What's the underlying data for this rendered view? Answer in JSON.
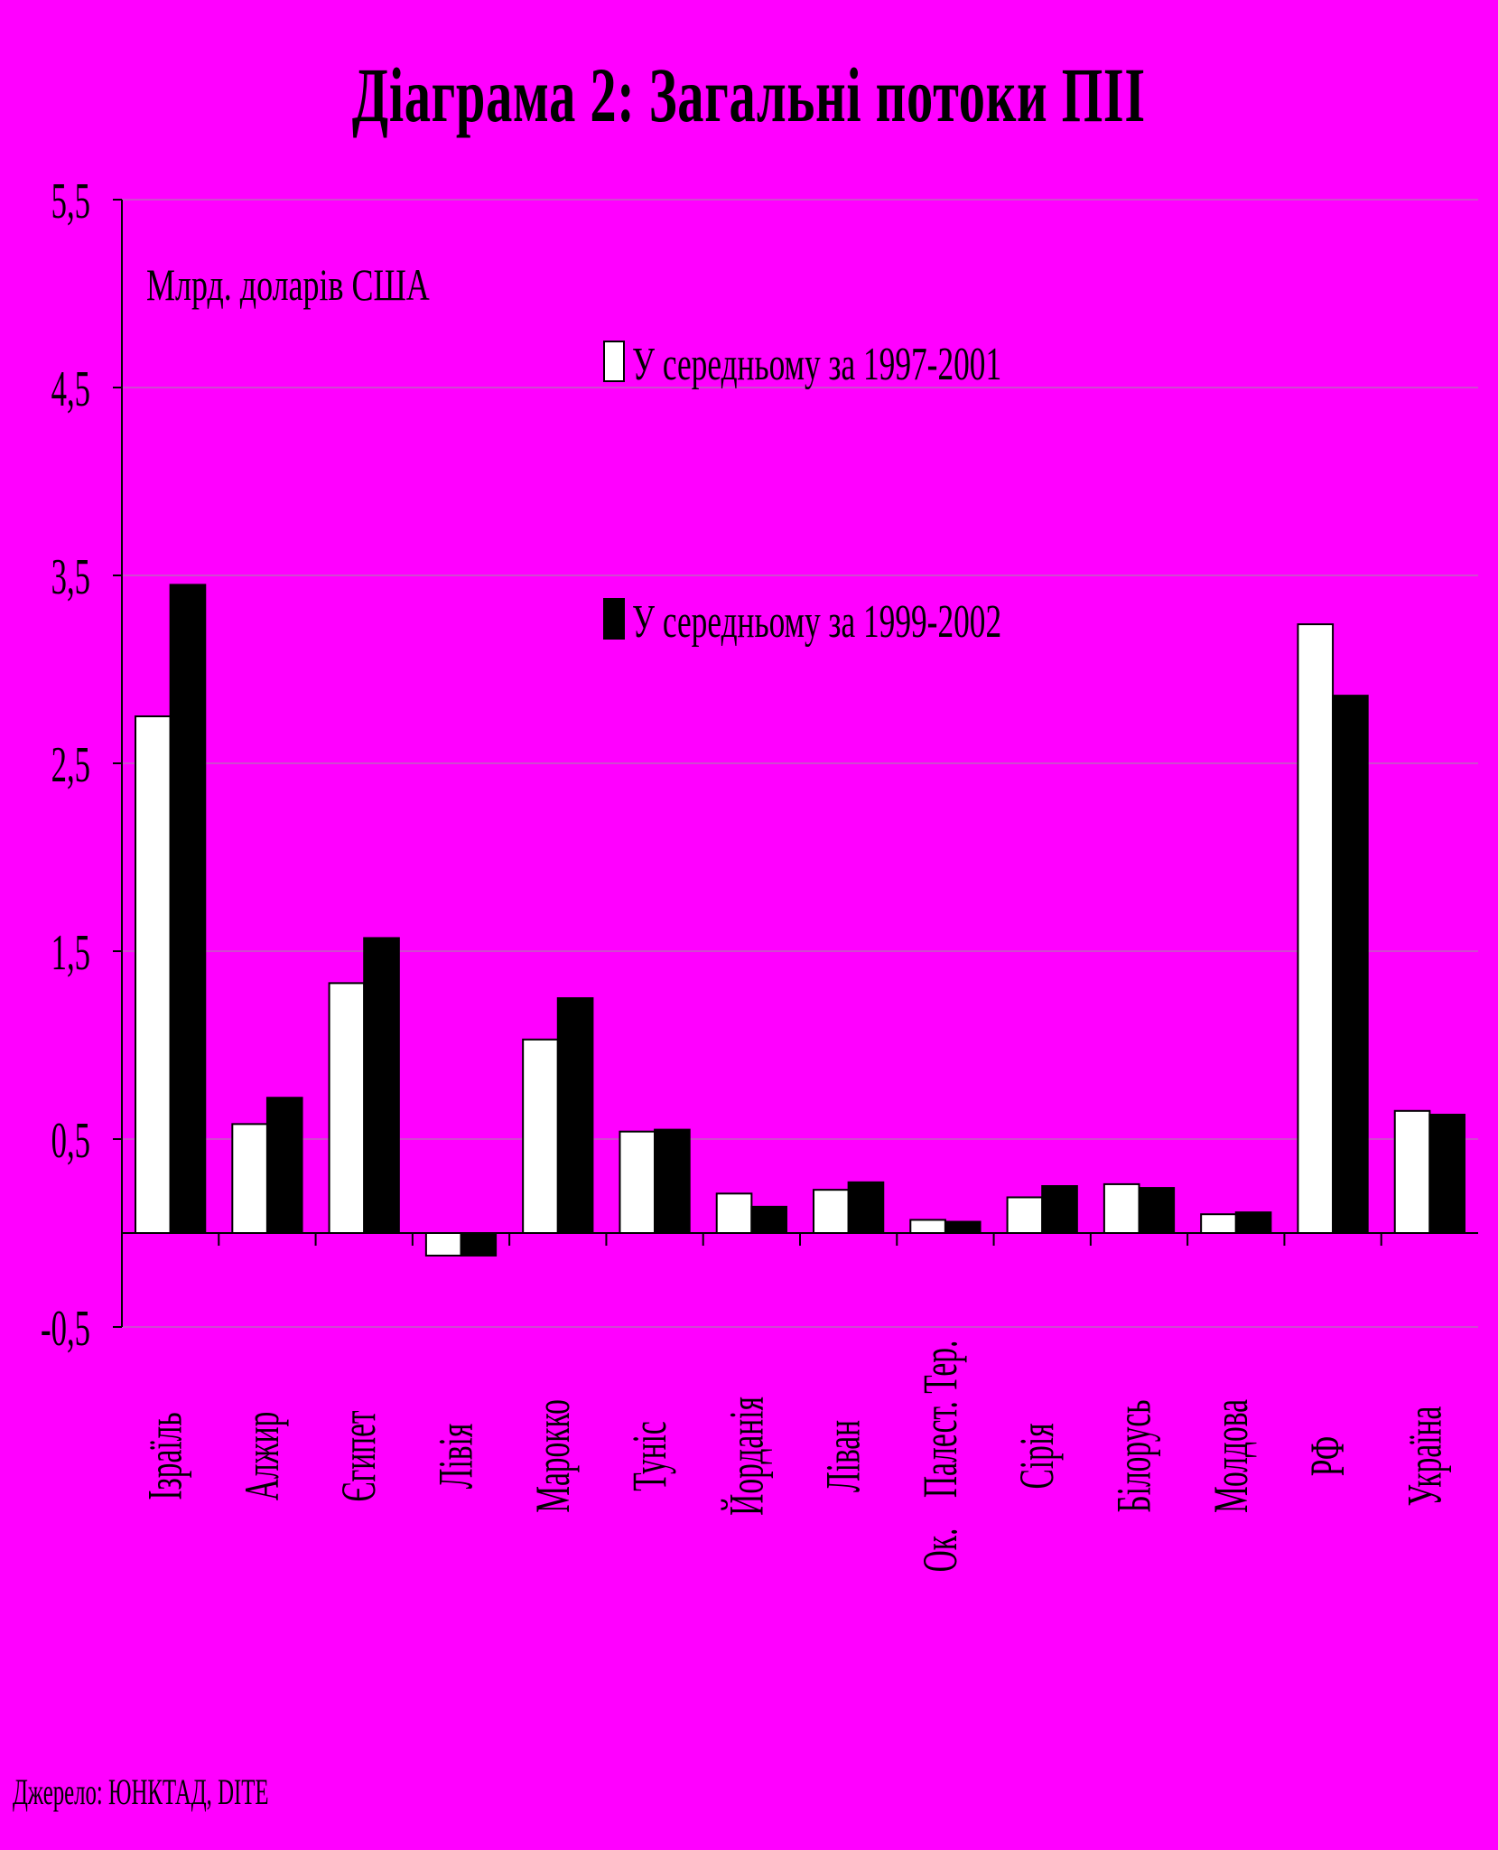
{
  "chart_data": {
    "type": "bar",
    "title": "Діаграма 2: Загальні потоки ПІІ",
    "unit_label": "Млрд. доларів США",
    "source": "Джерело: ЮНКТАД, DITE",
    "ylim": [
      -0.5,
      5.5
    ],
    "y_ticks": [
      "5,5",
      "4,5",
      "3,5",
      "2,5",
      "1,5",
      "0,5",
      "-0,5"
    ],
    "y_tick_values": [
      5.5,
      4.5,
      3.5,
      2.5,
      1.5,
      0.5,
      -0.5
    ],
    "grid": true,
    "legend_position": "top-center",
    "categories": [
      "Ізраїль",
      "Алжир",
      "Єгипет",
      "Лівія",
      "Марокко",
      "Туніс",
      "Йорданія",
      "Ліван",
      "Ок.    Палест. Тер.",
      "Сірія",
      "Білорусь",
      "Молдова",
      "РФ",
      "Україна"
    ],
    "series": [
      {
        "name": "У середньому за 1997-2001",
        "color": "#ffffff",
        "values": [
          2.75,
          0.58,
          1.33,
          -0.12,
          1.03,
          0.54,
          0.21,
          0.23,
          0.07,
          0.19,
          0.26,
          0.1,
          3.24,
          0.65
        ]
      },
      {
        "name": "У середньому за 1999-2002",
        "color": "#000000",
        "values": [
          3.45,
          0.72,
          1.57,
          -0.12,
          1.25,
          0.55,
          0.14,
          0.27,
          0.06,
          0.25,
          0.24,
          0.11,
          2.86,
          0.63
        ]
      }
    ]
  }
}
